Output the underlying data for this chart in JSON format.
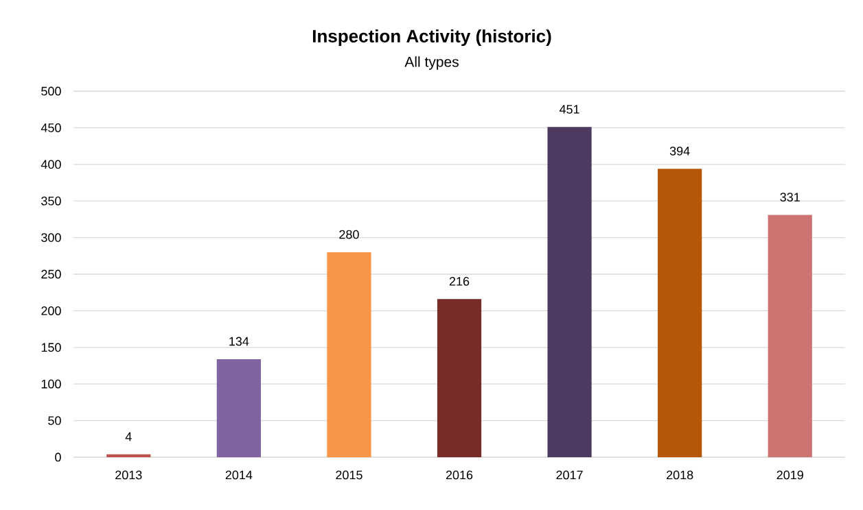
{
  "chart_data": {
    "type": "bar",
    "title": "Inspection Activity (historic)",
    "subtitle": "All types",
    "categories": [
      "2013",
      "2014",
      "2015",
      "2016",
      "2017",
      "2018",
      "2019"
    ],
    "values": [
      4,
      134,
      280,
      216,
      451,
      394,
      331
    ],
    "colors": [
      "#c0504d",
      "#8064a2",
      "#f79646",
      "#772c2a",
      "#4e3a61",
      "#b65708",
      "#cd7371"
    ],
    "ylim": [
      0,
      500
    ],
    "yticks": [
      0,
      50,
      100,
      150,
      200,
      250,
      300,
      350,
      400,
      450,
      500
    ],
    "grid": "y",
    "data_labels": true
  }
}
